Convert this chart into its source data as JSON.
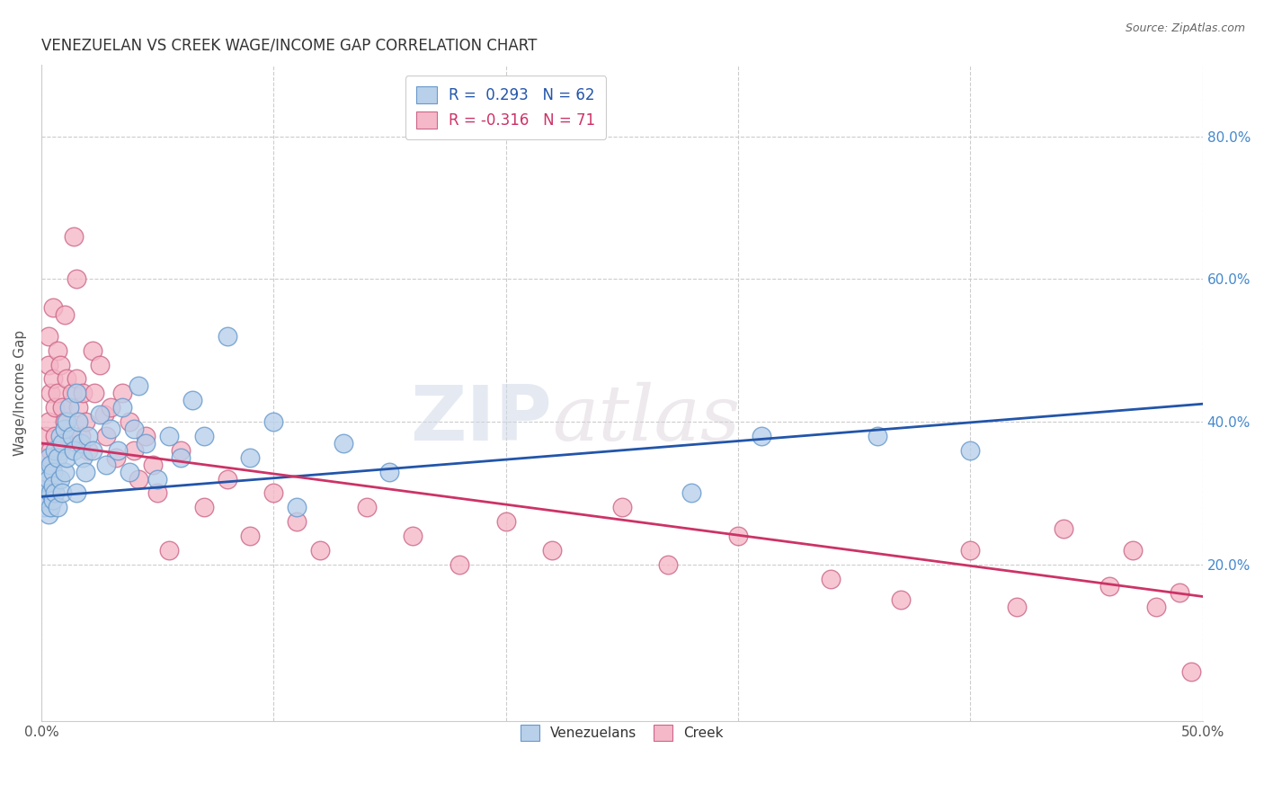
{
  "title": "VENEZUELAN VS CREEK WAGE/INCOME GAP CORRELATION CHART",
  "source": "Source: ZipAtlas.com",
  "ylabel": "Wage/Income Gap",
  "yticks_labels": [
    "20.0%",
    "40.0%",
    "60.0%",
    "80.0%"
  ],
  "ytick_vals": [
    0.2,
    0.4,
    0.6,
    0.8
  ],
  "legend_blue_label": "R =  0.293   N = 62",
  "legend_pink_label": "R = -0.316   N = 71",
  "legend_blue_color": "#b8d0ea",
  "legend_pink_color": "#f5b8c8",
  "blue_line_color": "#2255aa",
  "pink_line_color": "#cc3366",
  "blue_dot_color": "#b8d0ea",
  "pink_dot_color": "#f5b8c8",
  "dot_edge_blue": "#6699cc",
  "dot_edge_pink": "#cc6688",
  "watermark_zip": "ZIP",
  "watermark_atlas": "atlas",
  "background_color": "#ffffff",
  "grid_color": "#cccccc",
  "xlim": [
    0.0,
    0.5
  ],
  "ylim": [
    -0.02,
    0.9
  ],
  "blue_trend_start": 0.295,
  "blue_trend_end": 0.425,
  "pink_trend_start": 0.37,
  "pink_trend_end": 0.155,
  "venezuelan_x": [
    0.001,
    0.001,
    0.001,
    0.002,
    0.002,
    0.002,
    0.003,
    0.003,
    0.003,
    0.004,
    0.004,
    0.004,
    0.005,
    0.005,
    0.005,
    0.006,
    0.006,
    0.007,
    0.007,
    0.008,
    0.008,
    0.009,
    0.009,
    0.01,
    0.01,
    0.011,
    0.011,
    0.012,
    0.013,
    0.014,
    0.015,
    0.015,
    0.016,
    0.017,
    0.018,
    0.019,
    0.02,
    0.022,
    0.025,
    0.028,
    0.03,
    0.033,
    0.035,
    0.038,
    0.04,
    0.042,
    0.045,
    0.05,
    0.055,
    0.06,
    0.065,
    0.07,
    0.08,
    0.09,
    0.1,
    0.11,
    0.13,
    0.15,
    0.28,
    0.31,
    0.36,
    0.4
  ],
  "venezuelan_y": [
    0.3,
    0.32,
    0.28,
    0.31,
    0.33,
    0.29,
    0.35,
    0.32,
    0.27,
    0.34,
    0.3,
    0.28,
    0.33,
    0.31,
    0.29,
    0.36,
    0.3,
    0.35,
    0.28,
    0.38,
    0.32,
    0.37,
    0.3,
    0.39,
    0.33,
    0.4,
    0.35,
    0.42,
    0.38,
    0.36,
    0.44,
    0.3,
    0.4,
    0.37,
    0.35,
    0.33,
    0.38,
    0.36,
    0.41,
    0.34,
    0.39,
    0.36,
    0.42,
    0.33,
    0.39,
    0.45,
    0.37,
    0.32,
    0.38,
    0.35,
    0.43,
    0.38,
    0.52,
    0.35,
    0.4,
    0.28,
    0.37,
    0.33,
    0.3,
    0.38,
    0.38,
    0.36
  ],
  "creek_x": [
    0.001,
    0.001,
    0.002,
    0.002,
    0.003,
    0.003,
    0.003,
    0.004,
    0.004,
    0.005,
    0.005,
    0.006,
    0.006,
    0.007,
    0.007,
    0.008,
    0.008,
    0.009,
    0.01,
    0.01,
    0.011,
    0.012,
    0.013,
    0.014,
    0.015,
    0.015,
    0.016,
    0.017,
    0.018,
    0.019,
    0.02,
    0.022,
    0.023,
    0.025,
    0.027,
    0.028,
    0.03,
    0.032,
    0.035,
    0.038,
    0.04,
    0.042,
    0.045,
    0.048,
    0.05,
    0.055,
    0.06,
    0.07,
    0.08,
    0.09,
    0.1,
    0.11,
    0.12,
    0.14,
    0.16,
    0.18,
    0.2,
    0.22,
    0.25,
    0.27,
    0.3,
    0.34,
    0.37,
    0.4,
    0.42,
    0.44,
    0.46,
    0.47,
    0.48,
    0.49,
    0.495
  ],
  "creek_y": [
    0.35,
    0.3,
    0.38,
    0.32,
    0.48,
    0.4,
    0.52,
    0.44,
    0.36,
    0.46,
    0.56,
    0.38,
    0.42,
    0.5,
    0.44,
    0.48,
    0.36,
    0.42,
    0.55,
    0.4,
    0.46,
    0.38,
    0.44,
    0.66,
    0.6,
    0.46,
    0.42,
    0.38,
    0.44,
    0.4,
    0.36,
    0.5,
    0.44,
    0.48,
    0.41,
    0.38,
    0.42,
    0.35,
    0.44,
    0.4,
    0.36,
    0.32,
    0.38,
    0.34,
    0.3,
    0.22,
    0.36,
    0.28,
    0.32,
    0.24,
    0.3,
    0.26,
    0.22,
    0.28,
    0.24,
    0.2,
    0.26,
    0.22,
    0.28,
    0.2,
    0.24,
    0.18,
    0.15,
    0.22,
    0.14,
    0.25,
    0.17,
    0.22,
    0.14,
    0.16,
    0.05
  ]
}
